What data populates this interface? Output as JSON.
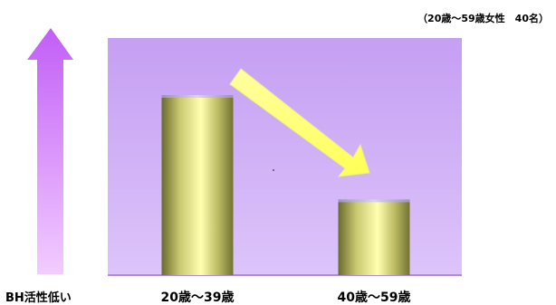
{
  "note": "（20歳～59歳女性　40名）",
  "arrow_label": "BH活性低い",
  "colors": {
    "plot_area": "#c9a6f2",
    "axis_arrow": "#cc66ff",
    "trend_arrow": "#ffff66"
  },
  "chart_data": {
    "type": "bar",
    "categories": [
      "20歳～39歳",
      "40歳～59歳"
    ],
    "values": [
      100,
      42
    ],
    "title": "",
    "xlabel": "",
    "ylabel": "BH活性低い",
    "ylim": [
      0,
      100
    ],
    "grid": false,
    "legend": "none"
  }
}
